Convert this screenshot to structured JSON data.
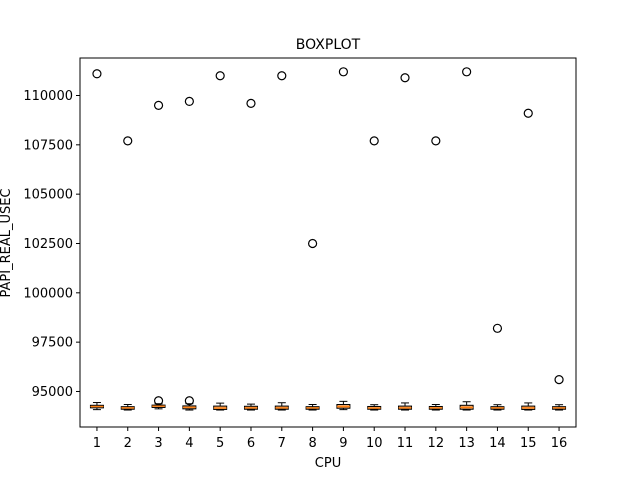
{
  "chart_data": {
    "type": "boxplot",
    "title": "BOXPLOT",
    "xlabel": "CPU",
    "ylabel": "PAPI_REAL_USEC",
    "categories": [
      "1",
      "2",
      "3",
      "4",
      "5",
      "6",
      "7",
      "8",
      "9",
      "10",
      "11",
      "12",
      "13",
      "14",
      "15",
      "16"
    ],
    "ylim": [
      93200,
      111900
    ],
    "yticks": [
      95000,
      97500,
      100000,
      102500,
      105000,
      107500,
      110000
    ],
    "ytick_labels": [
      "95000",
      "97500",
      "100000",
      "102500",
      "105000",
      "107500",
      "110000"
    ],
    "grid": false,
    "box_color": "#f4a460",
    "median_color": "#ff7f0e",
    "boxes": [
      {
        "whisker_low": 94080,
        "q1": 94170,
        "median": 94240,
        "q3": 94300,
        "whisker_high": 94440,
        "outliers": [
          111100
        ]
      },
      {
        "whisker_low": 94060,
        "q1": 94100,
        "median": 94170,
        "q3": 94230,
        "whisker_high": 94340,
        "outliers": [
          107700
        ]
      },
      {
        "whisker_low": 94120,
        "q1": 94190,
        "median": 94260,
        "q3": 94310,
        "whisker_high": 94380,
        "outliers": [
          109500,
          94530
        ]
      },
      {
        "whisker_low": 94060,
        "q1": 94120,
        "median": 94200,
        "q3": 94270,
        "whisker_high": 94380,
        "outliers": [
          109700,
          94530
        ]
      },
      {
        "whisker_low": 94060,
        "q1": 94090,
        "median": 94160,
        "q3": 94260,
        "whisker_high": 94410,
        "outliers": [
          111000
        ]
      },
      {
        "whisker_low": 94060,
        "q1": 94100,
        "median": 94170,
        "q3": 94250,
        "whisker_high": 94360,
        "outliers": [
          109600
        ]
      },
      {
        "whisker_low": 94060,
        "q1": 94100,
        "median": 94170,
        "q3": 94260,
        "whisker_high": 94430,
        "outliers": [
          111000
        ]
      },
      {
        "whisker_low": 94060,
        "q1": 94100,
        "median": 94170,
        "q3": 94230,
        "whisker_high": 94340,
        "outliers": [
          102500
        ]
      },
      {
        "whisker_low": 94080,
        "q1": 94150,
        "median": 94230,
        "q3": 94340,
        "whisker_high": 94500,
        "outliers": [
          111200
        ]
      },
      {
        "whisker_low": 94060,
        "q1": 94100,
        "median": 94160,
        "q3": 94240,
        "whisker_high": 94330,
        "outliers": [
          107700
        ]
      },
      {
        "whisker_low": 94060,
        "q1": 94100,
        "median": 94170,
        "q3": 94260,
        "whisker_high": 94420,
        "outliers": [
          110900
        ]
      },
      {
        "whisker_low": 94060,
        "q1": 94100,
        "median": 94170,
        "q3": 94240,
        "whisker_high": 94340,
        "outliers": [
          107700
        ]
      },
      {
        "whisker_low": 94060,
        "q1": 94100,
        "median": 94190,
        "q3": 94300,
        "whisker_high": 94480,
        "outliers": [
          111200
        ]
      },
      {
        "whisker_low": 94060,
        "q1": 94100,
        "median": 94170,
        "q3": 94230,
        "whisker_high": 94330,
        "outliers": [
          98200
        ]
      },
      {
        "whisker_low": 94060,
        "q1": 94090,
        "median": 94170,
        "q3": 94260,
        "whisker_high": 94420,
        "outliers": [
          109100
        ]
      },
      {
        "whisker_low": 94060,
        "q1": 94100,
        "median": 94170,
        "q3": 94230,
        "whisker_high": 94330,
        "outliers": [
          95600
        ]
      }
    ]
  }
}
